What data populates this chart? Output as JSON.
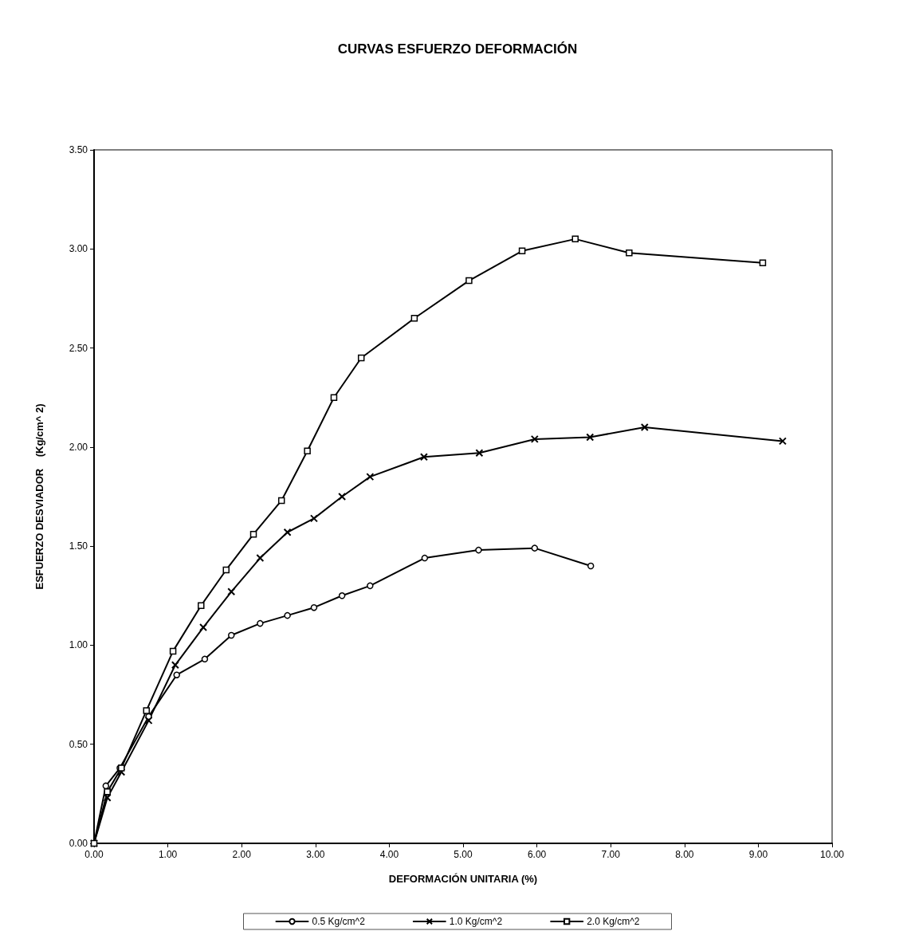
{
  "chart_data": {
    "type": "line",
    "title": "CURVAS ESFUERZO DEFORMACIÓN",
    "xlabel": "DEFORMACIÓN UNITARIA (%)",
    "ylabel": "ESFUERZO DESVIADOR    (Kg/cm^ 2)",
    "xlim": [
      0,
      10
    ],
    "xticks": [
      {
        "value": 0,
        "label": "0.00"
      },
      {
        "value": 1,
        "label": "1.00"
      },
      {
        "value": 2,
        "label": "2.00"
      },
      {
        "value": 3,
        "label": "3.00"
      },
      {
        "value": 4,
        "label": "4.00"
      },
      {
        "value": 5,
        "label": "5.00"
      },
      {
        "value": 6,
        "label": "6.00"
      },
      {
        "value": 7,
        "label": "7.00"
      },
      {
        "value": 8,
        "label": "8.00"
      },
      {
        "value": 9,
        "label": "9.00"
      },
      {
        "value": 10,
        "label": "10.00"
      }
    ],
    "ylim": [
      0,
      3.5
    ],
    "yticks": [
      {
        "value": 0,
        "label": "0.00"
      },
      {
        "value": 0.5,
        "label": "0.50"
      },
      {
        "value": 1,
        "label": "1.00"
      },
      {
        "value": 1.5,
        "label": "1.50"
      },
      {
        "value": 2,
        "label": "2.00"
      },
      {
        "value": 2.5,
        "label": "2.50"
      },
      {
        "value": 3,
        "label": "3.00"
      },
      {
        "value": 3.5,
        "label": "3.50"
      }
    ],
    "grid": false,
    "legend": "bottom",
    "line_style": "solid",
    "series": [
      {
        "name": "0.5 Kg/cm^2",
        "color": "#000000",
        "marker": "circle",
        "x": [
          0,
          0.16,
          0.35,
          0.74,
          1.12,
          1.5,
          1.86,
          2.25,
          2.62,
          2.98,
          3.36,
          3.74,
          4.48,
          5.21,
          5.97,
          6.73
        ],
        "values": [
          0,
          0.29,
          0.38,
          0.64,
          0.85,
          0.93,
          1.05,
          1.11,
          1.15,
          1.19,
          1.25,
          1.3,
          1.44,
          1.48,
          1.49,
          1.4
        ]
      },
      {
        "name": "1.0 Kg/cm^2",
        "color": "#000000",
        "marker": "cross",
        "x": [
          0,
          0.18,
          0.37,
          0.74,
          1.1,
          1.48,
          1.86,
          2.25,
          2.62,
          2.98,
          3.36,
          3.74,
          4.47,
          5.22,
          5.97,
          6.72,
          7.46,
          9.33
        ],
        "values": [
          0,
          0.23,
          0.36,
          0.62,
          0.9,
          1.09,
          1.27,
          1.44,
          1.57,
          1.64,
          1.75,
          1.85,
          1.95,
          1.97,
          2.04,
          2.05,
          2.1,
          2.03
        ]
      },
      {
        "name": "2.0 Kg/cm^2",
        "color": "#000000",
        "marker": "square",
        "x": [
          0,
          0.18,
          0.37,
          0.71,
          1.07,
          1.45,
          1.79,
          2.16,
          2.54,
          2.89,
          3.25,
          3.62,
          4.34,
          5.08,
          5.8,
          6.52,
          7.25,
          9.06
        ],
        "values": [
          0,
          0.26,
          0.38,
          0.67,
          0.97,
          1.2,
          1.38,
          1.56,
          1.73,
          1.98,
          2.25,
          2.45,
          2.65,
          2.84,
          2.99,
          3.05,
          2.98,
          2.93
        ]
      }
    ]
  }
}
